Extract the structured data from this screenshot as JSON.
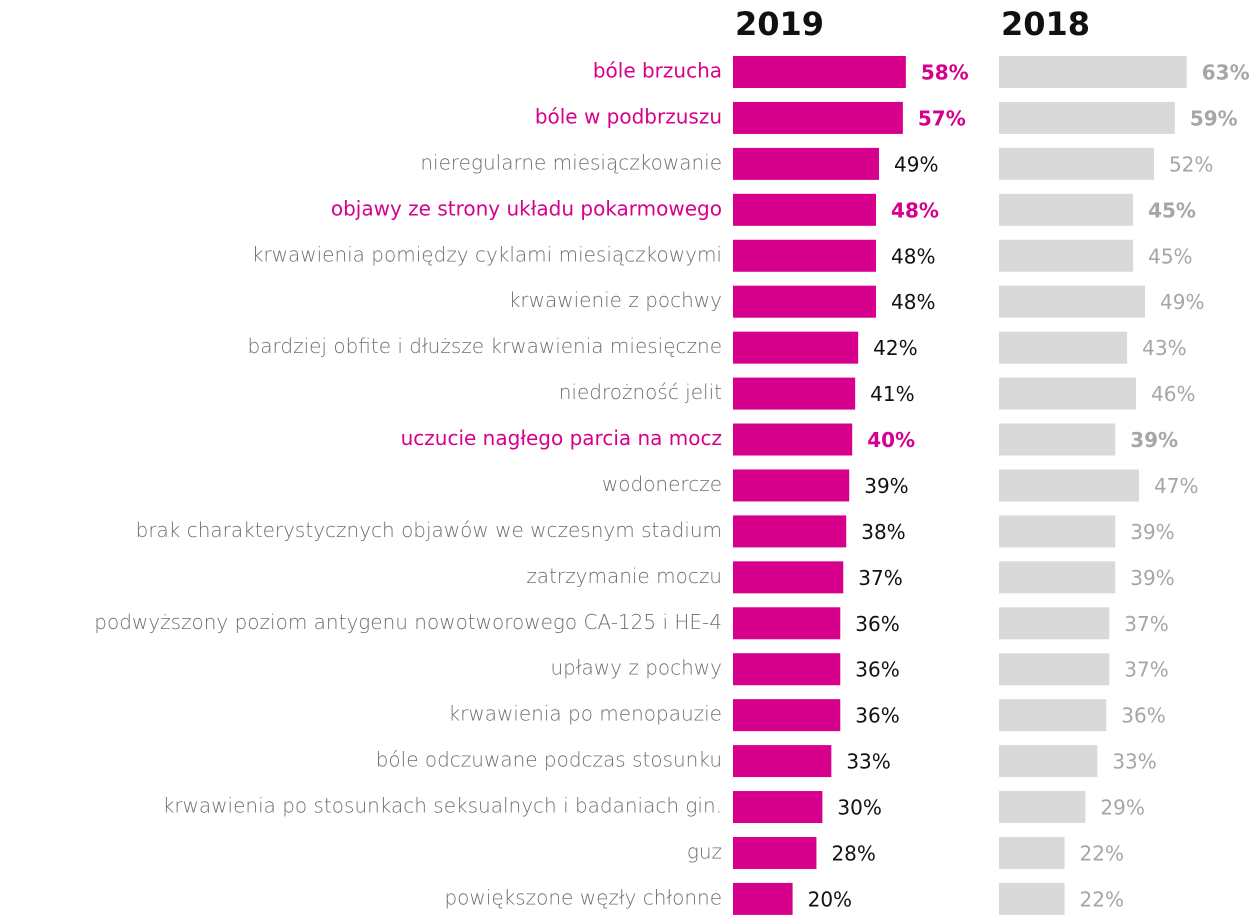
{
  "chart_data": {
    "type": "bar",
    "categories": [
      "bóle brzucha",
      "bóle w podbrzuszu",
      "nieregularne miesiączkowanie",
      "objawy ze strony układu pokarmowego",
      "krwawienia pomiędzy cyklami miesiączkowymi",
      "krwawienie z pochwy",
      "bardziej obfite i dłuższe krwawienia miesięczne",
      "niedrożność jelit",
      "uczucie nagłego parcia na mocz",
      "wodonercze",
      "brak charakterystycznych objawów we wczesnym stadium",
      "zatrzymanie moczu",
      "podwyższony poziom antygenu nowotworowego CA-125 i HE-4",
      "upławy z pochwy",
      "krwawienia po menopauzie",
      "bóle odczuwane podczas stosunku",
      "krwawienia po stosunkach seksualnych i badaniach gin.",
      "guz",
      "powiększone węzły chłonne"
    ],
    "highlight": [
      true,
      true,
      false,
      true,
      false,
      false,
      false,
      false,
      true,
      false,
      false,
      false,
      false,
      false,
      false,
      false,
      false,
      false,
      false
    ],
    "highlight_color": "#d6008c",
    "series": [
      {
        "name": "2019",
        "color": "#d6008c",
        "label_color": "#111111",
        "values": [
          58,
          57,
          49,
          48,
          48,
          48,
          42,
          41,
          40,
          39,
          38,
          37,
          36,
          36,
          36,
          33,
          30,
          28,
          20
        ],
        "value_labels": [
          "58%",
          "57%",
          "49%",
          "48%",
          "48%",
          "48%",
          "42%",
          "41%",
          "40%",
          "39%",
          "38%",
          "37%",
          "36%",
          "36%",
          "36%",
          "33%",
          "30%",
          "28%",
          "20%"
        ]
      },
      {
        "name": "2018",
        "color": "#d9d9d9",
        "label_color": "#a6a6a6",
        "values": [
          63,
          59,
          52,
          45,
          45,
          49,
          43,
          46,
          39,
          47,
          39,
          39,
          37,
          37,
          36,
          33,
          29,
          22,
          22
        ],
        "value_labels": [
          "63%",
          "59%",
          "52%",
          "45%",
          "45%",
          "49%",
          "43%",
          "46%",
          "39%",
          "47%",
          "39%",
          "39%",
          "37%",
          "37%",
          "36%",
          "33%",
          "29%",
          "22%",
          "22%"
        ]
      }
    ]
  }
}
